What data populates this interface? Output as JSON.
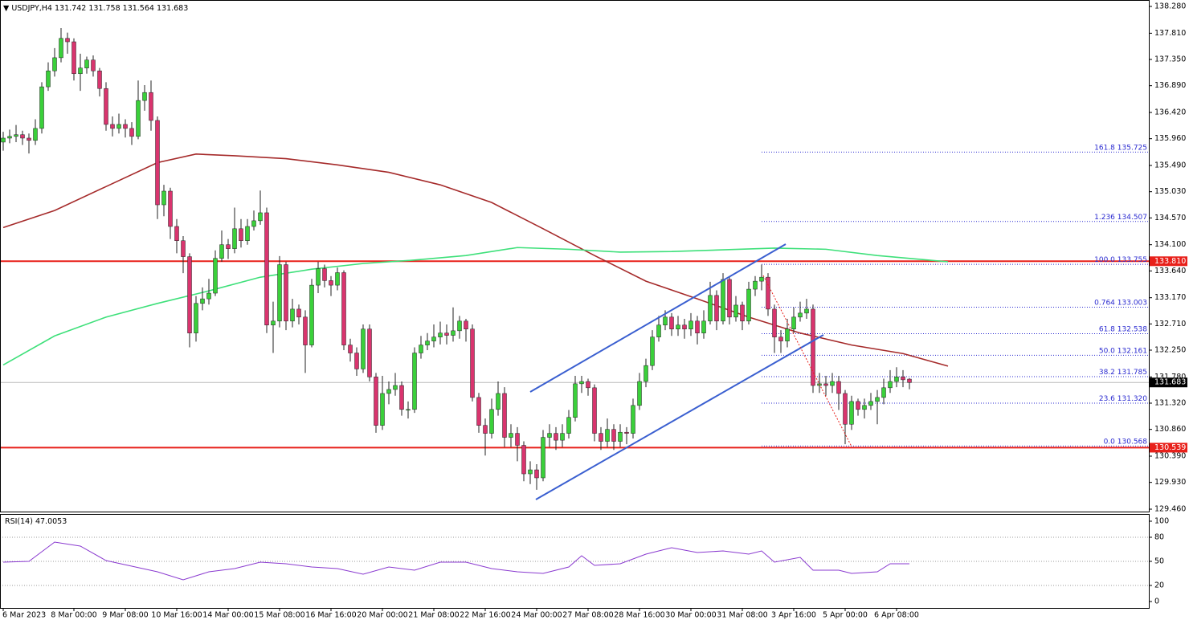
{
  "chart_data": {
    "type": "candlestick",
    "symbol": "USDJPY,H4",
    "up_color": "#3ad03a",
    "down_color": "#d9346e",
    "open": [
      135.9,
      135.97,
      136.0,
      136.03,
      135.97,
      135.93,
      136.14,
      136.87,
      137.15,
      137.38,
      137.72,
      137.66,
      137.1,
      137.2,
      137.34,
      137.15,
      136.84,
      136.21,
      136.14,
      136.21,
      136.14,
      136.0,
      136.63,
      136.77,
      136.28,
      134.8,
      135.04,
      134.42,
      134.17,
      133.89,
      132.55,
      133.07,
      133.15,
      133.25,
      133.86,
      134.1,
      134.03,
      134.38,
      134.17,
      134.42,
      134.52,
      134.66,
      132.69,
      132.76,
      133.75,
      132.76,
      132.97,
      132.83,
      132.34,
      133.39,
      133.68,
      133.47,
      133.39,
      133.61,
      132.34,
      132.2,
      131.92,
      132.62,
      131.78,
      130.93,
      131.49,
      131.56,
      131.63,
      131.21,
      131.21,
      132.2,
      132.34,
      132.41,
      132.48,
      132.55,
      132.51,
      132.59,
      132.76,
      132.62,
      131.42,
      130.93,
      130.79,
      131.21,
      131.49,
      130.72,
      130.79,
      130.58,
      130.08,
      130.15,
      130.01,
      130.72,
      130.79,
      130.67,
      130.79,
      131.07,
      131.66,
      131.7,
      131.59,
      130.79,
      130.65,
      130.86,
      130.65,
      130.81,
      130.79,
      131.28,
      131.7,
      131.98,
      132.48,
      132.69,
      132.83,
      132.62,
      132.69,
      132.62,
      132.76,
      132.55,
      132.76,
      133.21,
      132.76,
      133.49,
      132.83,
      133.04,
      132.76,
      133.32,
      133.46,
      133.53,
      132.97,
      132.48,
      132.41,
      132.62,
      132.83,
      132.9,
      132.97,
      131.63,
      131.66,
      131.63,
      131.7,
      131.49,
      130.95,
      131.35,
      131.21,
      131.28,
      131.35,
      131.42,
      131.59,
      131.7,
      131.78,
      131.742
    ],
    "high": [
      136.08,
      136.12,
      136.2,
      136.1,
      136.05,
      136.3,
      136.95,
      137.3,
      137.55,
      137.9,
      137.82,
      137.72,
      137.45,
      137.4,
      137.42,
      137.2,
      136.95,
      136.35,
      136.4,
      136.3,
      136.25,
      136.98,
      136.9,
      136.98,
      136.35,
      135.15,
      135.1,
      134.55,
      134.25,
      133.95,
      133.2,
      133.35,
      133.5,
      134.0,
      134.35,
      134.2,
      134.75,
      134.55,
      134.55,
      134.7,
      135.05,
      134.75,
      133.1,
      133.9,
      133.8,
      133.15,
      133.05,
      132.95,
      133.5,
      133.8,
      133.75,
      133.55,
      133.7,
      133.65,
      132.45,
      132.3,
      132.7,
      132.7,
      131.85,
      131.8,
      131.7,
      131.85,
      131.7,
      131.35,
      132.3,
      132.5,
      132.55,
      132.7,
      132.75,
      132.7,
      133.0,
      132.85,
      132.8,
      132.7,
      131.5,
      131.05,
      131.4,
      131.7,
      131.6,
      130.95,
      130.9,
      130.65,
      130.3,
      130.25,
      130.85,
      130.95,
      130.9,
      130.95,
      131.2,
      131.8,
      131.8,
      131.75,
      131.65,
      130.9,
      131.05,
      130.95,
      130.95,
      130.9,
      131.4,
      131.85,
      132.1,
      132.6,
      132.85,
      132.95,
      132.9,
      132.85,
      132.8,
      132.9,
      132.85,
      132.95,
      133.45,
      133.3,
      133.6,
      133.55,
      133.2,
      133.1,
      133.45,
      133.55,
      133.75,
      133.6,
      133.05,
      132.6,
      132.8,
      133.0,
      133.1,
      133.15,
      133.05,
      131.85,
      131.8,
      131.85,
      131.8,
      131.55,
      131.45,
      131.4,
      131.4,
      131.5,
      131.55,
      131.75,
      131.9,
      131.95,
      131.9,
      131.758
    ],
    "low": [
      135.75,
      135.88,
      135.9,
      135.85,
      135.7,
      135.85,
      136.05,
      136.8,
      137.05,
      137.3,
      137.45,
      136.98,
      136.8,
      137.1,
      137.05,
      136.7,
      136.1,
      136.0,
      136.05,
      135.98,
      135.85,
      135.95,
      136.45,
      136.1,
      134.55,
      134.6,
      134.2,
      133.95,
      133.6,
      132.3,
      132.4,
      132.95,
      133.05,
      133.2,
      133.8,
      133.85,
      133.95,
      134.05,
      134.1,
      134.35,
      134.45,
      132.55,
      132.2,
      132.65,
      132.6,
      132.65,
      132.7,
      131.85,
      132.3,
      133.25,
      133.35,
      133.2,
      133.3,
      132.25,
      132.05,
      131.8,
      131.85,
      131.7,
      130.8,
      130.85,
      131.3,
      131.45,
      131.1,
      131.05,
      131.15,
      132.1,
      132.25,
      132.3,
      132.35,
      132.35,
      132.4,
      132.45,
      132.4,
      131.35,
      130.8,
      130.4,
      130.7,
      131.1,
      130.55,
      130.55,
      130.3,
      129.95,
      129.9,
      129.8,
      129.95,
      130.55,
      130.5,
      130.55,
      130.7,
      131.0,
      131.5,
      131.45,
      130.65,
      130.5,
      130.55,
      130.5,
      130.55,
      130.6,
      130.7,
      131.2,
      131.6,
      131.9,
      132.4,
      132.6,
      132.5,
      132.5,
      132.45,
      132.5,
      132.35,
      132.45,
      132.7,
      132.6,
      132.7,
      132.7,
      132.75,
      132.6,
      132.7,
      133.2,
      133.3,
      132.85,
      132.2,
      132.2,
      132.3,
      132.55,
      132.75,
      132.8,
      131.5,
      131.5,
      131.45,
      131.5,
      131.2,
      130.6,
      130.85,
      131.1,
      131.05,
      131.2,
      130.95,
      131.3,
      131.5,
      131.6,
      131.6,
      131.564
    ],
    "close": [
      135.97,
      136.0,
      136.03,
      135.97,
      135.93,
      136.14,
      136.87,
      137.15,
      137.38,
      137.72,
      137.66,
      137.1,
      137.2,
      137.34,
      137.15,
      136.84,
      136.21,
      136.14,
      136.21,
      136.14,
      136.0,
      136.63,
      136.77,
      136.28,
      134.8,
      135.04,
      134.42,
      134.17,
      133.89,
      132.55,
      133.07,
      133.15,
      133.25,
      133.86,
      134.1,
      134.03,
      134.38,
      134.17,
      134.42,
      134.52,
      134.66,
      132.69,
      132.76,
      133.75,
      132.76,
      132.97,
      132.83,
      132.34,
      133.39,
      133.68,
      133.47,
      133.39,
      133.61,
      132.34,
      132.2,
      131.92,
      132.62,
      131.78,
      130.93,
      131.49,
      131.56,
      131.63,
      131.21,
      131.21,
      132.2,
      132.34,
      132.41,
      132.48,
      132.55,
      132.51,
      132.59,
      132.76,
      132.62,
      131.42,
      130.93,
      130.79,
      131.21,
      131.49,
      130.72,
      130.79,
      130.58,
      130.08,
      130.15,
      130.01,
      130.72,
      130.79,
      130.67,
      130.79,
      131.07,
      131.66,
      131.7,
      131.59,
      130.79,
      130.65,
      130.86,
      130.65,
      130.81,
      130.79,
      131.28,
      131.7,
      131.98,
      132.48,
      132.69,
      132.83,
      132.62,
      132.69,
      132.62,
      132.76,
      132.55,
      132.76,
      133.21,
      132.76,
      133.49,
      132.83,
      133.04,
      132.76,
      133.32,
      133.46,
      133.53,
      132.97,
      132.48,
      132.41,
      132.62,
      132.83,
      132.9,
      132.97,
      131.63,
      131.66,
      131.63,
      131.7,
      131.49,
      130.95,
      131.35,
      131.21,
      131.28,
      131.35,
      131.42,
      131.59,
      131.7,
      131.78,
      131.73,
      131.683
    ],
    "xlim": [
      -0.5,
      178.25
    ],
    "xticks": [
      {
        "value": 0,
        "label": "6 Mar 2023"
      },
      {
        "value": 11,
        "label": "8 Mar 00:00"
      },
      {
        "value": 19,
        "label": "9 Mar 08:00"
      },
      {
        "value": 27,
        "label": "10 Mar 16:00"
      },
      {
        "value": 35,
        "label": "14 Mar 00:00"
      },
      {
        "value": 43,
        "label": "15 Mar 08:00"
      },
      {
        "value": 51,
        "label": "16 Mar 16:00"
      },
      {
        "value": 59,
        "label": "20 Mar 00:00"
      },
      {
        "value": 67,
        "label": "21 Mar 08:00"
      },
      {
        "value": 75,
        "label": "22 Mar 16:00"
      },
      {
        "value": 83,
        "label": "24 Mar 00:00"
      },
      {
        "value": 91,
        "label": "27 Mar 08:00"
      },
      {
        "value": 99,
        "label": "28 Mar 16:00"
      },
      {
        "value": 107,
        "label": "30 Mar 00:00"
      },
      {
        "value": 115,
        "label": "31 Mar 08:00"
      },
      {
        "value": 123,
        "label": "3 Apr 16:00"
      },
      {
        "value": 131,
        "label": "5 Apr 00:00"
      },
      {
        "value": 139,
        "label": "6 Apr 08:00"
      }
    ],
    "ylim": [
      129.418,
      138.393
    ],
    "yticks": [
      {
        "value": 138.28,
        "label": "138.280"
      },
      {
        "value": 137.81,
        "label": "137.810"
      },
      {
        "value": 137.35,
        "label": "137.350"
      },
      {
        "value": 136.89,
        "label": "136.890"
      },
      {
        "value": 136.42,
        "label": "136.420"
      },
      {
        "value": 135.96,
        "label": "135.960"
      },
      {
        "value": 135.49,
        "label": "135.490"
      },
      {
        "value": 135.03,
        "label": "135.030"
      },
      {
        "value": 134.57,
        "label": "134.570"
      },
      {
        "value": 134.1,
        "label": "134.100"
      },
      {
        "value": 133.64,
        "label": "133.640"
      },
      {
        "value": 133.17,
        "label": "133.170"
      },
      {
        "value": 132.71,
        "label": "132.710"
      },
      {
        "value": 132.25,
        "label": "132.250"
      },
      {
        "value": 131.78,
        "label": "131.780"
      },
      {
        "value": 131.32,
        "label": "131.320"
      },
      {
        "value": 130.86,
        "label": "130.860"
      },
      {
        "value": 130.39,
        "label": "130.390"
      },
      {
        "value": 129.93,
        "label": "129.930"
      },
      {
        "value": 129.46,
        "label": "129.460"
      }
    ],
    "overlays": [
      {
        "color": "#a52a2a",
        "x": [
          0,
          8,
          16,
          24,
          30,
          36,
          44,
          52,
          60,
          68,
          76,
          84,
          92,
          100,
          108,
          116,
          124,
          132,
          140,
          147
        ],
        "values": [
          134.4,
          134.7,
          135.12,
          135.54,
          135.69,
          135.66,
          135.61,
          135.5,
          135.37,
          135.15,
          134.84,
          134.38,
          133.91,
          133.46,
          133.15,
          132.83,
          132.55,
          132.34,
          132.19,
          131.97
        ]
      },
      {
        "color": "#3ee07a",
        "x": [
          0,
          8,
          16,
          24,
          32,
          40,
          48,
          56,
          64,
          72,
          80,
          88,
          96,
          104,
          112,
          120,
          128,
          136,
          147
        ],
        "values": [
          131.99,
          132.5,
          132.83,
          133.07,
          133.29,
          133.53,
          133.67,
          133.77,
          133.83,
          133.91,
          134.05,
          134.02,
          133.97,
          133.98,
          134.01,
          134.04,
          134.02,
          133.91,
          133.8
        ]
      }
    ],
    "levels": [
      {
        "color": "#e8201a",
        "value": {
          "value": 133.81,
          "label": "133.810"
        }
      },
      {
        "color": "#e8201a",
        "value": 130.539
      }
    ],
    "current_price": 131.683,
    "fibonacci": [
      {
        "level": "161.8",
        "price": 135.725
      },
      {
        "level": "1.236",
        "price": 134.507
      },
      {
        "level": "100.0",
        "price": 133.755
      },
      {
        "level": "0.764",
        "price": 133.003
      },
      {
        "level": "61.8",
        "price": 132.538
      },
      {
        "level": "50.0",
        "price": 132.161
      },
      {
        "level": "38.2",
        "price": 131.785
      },
      {
        "level": "23.6",
        "price": {
          "value": 131.32,
          "label": "131.320"
        }
      },
      {
        "level": "0.0",
        "price": 130.568
      }
    ],
    "rsi": {
      "label": "RSI(14)",
      "color": "#8a3ad0",
      "ylim": [
        -8,
        109
      ],
      "yticks": [
        100,
        80,
        50,
        20,
        0
      ],
      "levels": [
        80,
        50,
        20
      ],
      "x": [
        0,
        4,
        8,
        12,
        16,
        20,
        24,
        28,
        32,
        36,
        40,
        44,
        48,
        52,
        56,
        60,
        64,
        68,
        72,
        76,
        80,
        84,
        88,
        90,
        92,
        96,
        100,
        104,
        108,
        112,
        116,
        118,
        120,
        124,
        126,
        130,
        132,
        136,
        138,
        141
      ],
      "values": [
        49,
        50,
        74,
        69,
        51,
        44,
        37,
        27,
        37,
        41,
        49,
        47,
        43,
        41,
        34,
        43,
        39,
        49,
        49,
        41,
        37,
        35,
        43,
        57,
        45,
        47,
        59,
        67,
        61,
        63,
        59,
        63,
        49,
        55,
        39,
        39,
        35,
        37,
        47,
        47.0053
      ]
    }
  }
}
